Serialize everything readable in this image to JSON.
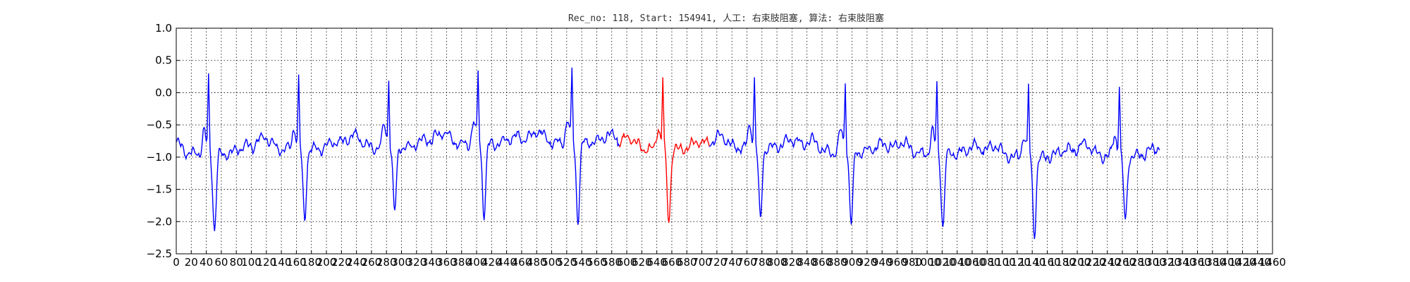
{
  "chart_data": {
    "type": "line",
    "title": "Rec_no: 118, Start: 154941, 人工: 右束肢阻塞, 算法: 右束肢阻塞",
    "xlabel": "",
    "ylabel": "",
    "xlim": [
      0,
      1460
    ],
    "ylim": [
      -2.5,
      1.0
    ],
    "yticks": [
      -2.5,
      -2.0,
      -1.5,
      -1.0,
      -0.5,
      0.0,
      0.5,
      1.0
    ],
    "ytick_labels": [
      "−2.5",
      "−2.0",
      "−1.5",
      "−1.0",
      "−0.5",
      "0.0",
      "0.5",
      "1.0"
    ],
    "xticks": [
      0,
      20,
      40,
      60,
      80,
      100,
      120,
      140,
      160,
      180,
      200,
      220,
      240,
      260,
      280,
      300,
      320,
      340,
      360,
      380,
      400,
      420,
      440,
      460,
      480,
      500,
      520,
      540,
      560,
      580,
      600,
      620,
      640,
      660,
      680,
      700,
      720,
      740,
      760,
      780,
      800,
      820,
      840,
      860,
      880,
      900,
      920,
      940,
      960,
      980,
      1000,
      1020,
      1040,
      1060,
      1080,
      1100,
      1120,
      1140,
      1160,
      1180,
      1200,
      1220,
      1240,
      1260,
      1280,
      1300,
      1320,
      1340,
      1360,
      1380,
      1400,
      1420,
      1440,
      1460
    ],
    "grid": true,
    "grid_style": "dotted",
    "series_colors": {
      "normal": "#0000ff",
      "highlight": "#ff0000"
    },
    "beats": [
      {
        "r_x": 43,
        "r_peak": 0.52,
        "s_min": -2.13,
        "baseline": -0.95,
        "color": "#0000ff"
      },
      {
        "r_x": 163,
        "r_peak": 0.52,
        "s_min": -1.97,
        "baseline": -0.88,
        "color": "#0000ff"
      },
      {
        "r_x": 283,
        "r_peak": 0.53,
        "s_min": -1.87,
        "baseline": -0.85,
        "color": "#0000ff"
      },
      {
        "r_x": 402,
        "r_peak": 0.63,
        "s_min": -1.88,
        "baseline": -0.8,
        "color": "#0000ff"
      },
      {
        "r_x": 527,
        "r_peak": 0.63,
        "s_min": -1.98,
        "baseline": -0.78,
        "color": "#0000ff"
      },
      {
        "r_x": 648,
        "r_peak": 0.5,
        "s_min": -2.01,
        "baseline": -0.88,
        "color": "#ff0000"
      },
      {
        "r_x": 770,
        "r_peak": 0.51,
        "s_min": -1.97,
        "baseline": -0.85,
        "color": "#0000ff"
      },
      {
        "r_x": 891,
        "r_peak": 0.48,
        "s_min": -2.05,
        "baseline": -0.92,
        "color": "#0000ff"
      },
      {
        "r_x": 1013,
        "r_peak": 0.42,
        "s_min": -2.07,
        "baseline": -0.95,
        "color": "#0000ff"
      },
      {
        "r_x": 1135,
        "r_peak": 0.38,
        "s_min": -2.18,
        "baseline": -1.0,
        "color": "#0000ff"
      },
      {
        "r_x": 1256,
        "r_peak": 0.43,
        "s_min": -2.02,
        "baseline": -0.98,
        "color": "#0000ff"
      }
    ],
    "highlight_segment": {
      "x_start": 590,
      "x_end": 710,
      "color": "#ff0000"
    },
    "signal_x_end": 1310
  }
}
